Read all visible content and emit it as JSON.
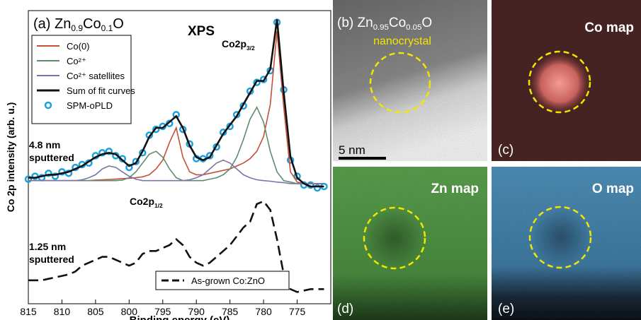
{
  "chart_data": {
    "type": "line",
    "title_parts": [
      "(a) Zn",
      "0.9",
      "Co",
      "0.1",
      "O"
    ],
    "x_label": "Binding energy (eV)",
    "y_label": "Co 2p intensity (arb. u.)",
    "annotations": {
      "xps": "XPS",
      "co2p32": [
        "Co2p",
        "3/2"
      ],
      "co2p12": [
        "Co2p",
        "1/2"
      ],
      "upper": [
        "4.8 nm",
        "sputtered"
      ],
      "lower": [
        "1.25 nm",
        "sputtered"
      ]
    },
    "xlim": [
      815,
      770
    ],
    "ylim": [
      0,
      100
    ],
    "xticks": [
      815,
      810,
      805,
      800,
      795,
      790,
      785,
      780,
      775
    ],
    "x": [
      815,
      814,
      813,
      812,
      811,
      810,
      809,
      808,
      807,
      806,
      805,
      804,
      803,
      802,
      801,
      800,
      799,
      798,
      797,
      796,
      795,
      794,
      793,
      792,
      791,
      790,
      789,
      788,
      787,
      786,
      785,
      784,
      783,
      782,
      781,
      780,
      779,
      778,
      777,
      776,
      775,
      774,
      773,
      772,
      771
    ],
    "series": [
      {
        "name": "Co(0)",
        "color": "#c4503c",
        "style": "line",
        "legend": 1,
        "values": [
          42,
          42,
          42,
          42,
          42,
          42,
          42,
          42,
          42,
          42,
          42.2,
          42.3,
          42.4,
          42.5,
          42.7,
          42.8,
          43,
          43.3,
          44,
          46,
          49,
          55,
          60,
          50,
          45,
          44,
          44,
          44.5,
          45,
          45.5,
          46,
          47,
          48,
          49.5,
          52,
          57,
          68,
          93,
          67,
          45,
          41.5,
          41,
          41,
          41,
          41
        ]
      },
      {
        "name": "Co²⁺",
        "color": "#5e8c6c",
        "style": "line",
        "legend": 1,
        "values": [
          42,
          42,
          42,
          42,
          42,
          42,
          42,
          42,
          42,
          42,
          42,
          42,
          42,
          42,
          42.2,
          43,
          45,
          48,
          51,
          52,
          50,
          46,
          43,
          42,
          42,
          42,
          42,
          42.5,
          43,
          44,
          46,
          50,
          56,
          63,
          67,
          62,
          52,
          45,
          42,
          41.5,
          41,
          41,
          41,
          41,
          41
        ]
      },
      {
        "name": "Co²⁺ satellites",
        "color": "#7b74a8",
        "style": "line",
        "legend": 1,
        "values": [
          42,
          42,
          42,
          42,
          42,
          42,
          42,
          42,
          42.3,
          43,
          44,
          46,
          47,
          46.5,
          45,
          43.5,
          42.5,
          42,
          42,
          42,
          42,
          42,
          42,
          42,
          42.3,
          43,
          44,
          46,
          48,
          49,
          48,
          46,
          44,
          43,
          42.3,
          42,
          41.8,
          41.5,
          41.3,
          41,
          41,
          41,
          41,
          41,
          41
        ]
      },
      {
        "name": "Sum of fit curves",
        "color": "#111111",
        "style": "bold",
        "legend": 1,
        "values": [
          43,
          43,
          43.5,
          44,
          44,
          44.5,
          45,
          46,
          47,
          48.5,
          50,
          51,
          51.5,
          51,
          49,
          47,
          48,
          52,
          57,
          60,
          60,
          62,
          64,
          60,
          54,
          50,
          49,
          50,
          54,
          58,
          61,
          64,
          68,
          72,
          76,
          76,
          80,
          97,
          72,
          50,
          43,
          41,
          40,
          40,
          40
        ]
      },
      {
        "name": "SPM-oPLD",
        "color": "#1ea0d8",
        "style": "markers",
        "legend": 1,
        "values": [
          42.5,
          43.5,
          43,
          44.5,
          43.5,
          45,
          44.5,
          46.5,
          47.5,
          48,
          50.5,
          51.5,
          52,
          50.5,
          49.5,
          46.5,
          48.5,
          51.5,
          57.5,
          59.5,
          60.5,
          61.5,
          64.5,
          59.5,
          54.5,
          49.5,
          49.5,
          50.5,
          53.5,
          58.5,
          60.5,
          64.5,
          67.5,
          72.5,
          75.5,
          76.5,
          79.5,
          96,
          73,
          49,
          43.5,
          40.5,
          40.5,
          39.5,
          40
        ]
      },
      {
        "name": "As-grown Co:ZnO",
        "color": "#111111",
        "style": "dashed",
        "legend": 2,
        "values": [
          8,
          8,
          8,
          8.5,
          9,
          9.5,
          10,
          11,
          13,
          14,
          15,
          16,
          16,
          15,
          14,
          13,
          14,
          17,
          18,
          18,
          19,
          20,
          22,
          20,
          16,
          14,
          13,
          14,
          16,
          18,
          20,
          23,
          26,
          28,
          34,
          35,
          32,
          22,
          10,
          5,
          4,
          4.5,
          5,
          5,
          5
        ]
      }
    ]
  },
  "images": {
    "b": {
      "label_parts": [
        "(b) Zn",
        "0.95",
        "Co",
        "0.05",
        "O"
      ],
      "note": "nanocrystal",
      "scale": "5 nm"
    },
    "c": {
      "title": "Co map",
      "label": "(c)"
    },
    "d": {
      "title": "Zn map",
      "label": "(d)"
    },
    "e": {
      "title": "O map",
      "label": "(e)"
    }
  }
}
